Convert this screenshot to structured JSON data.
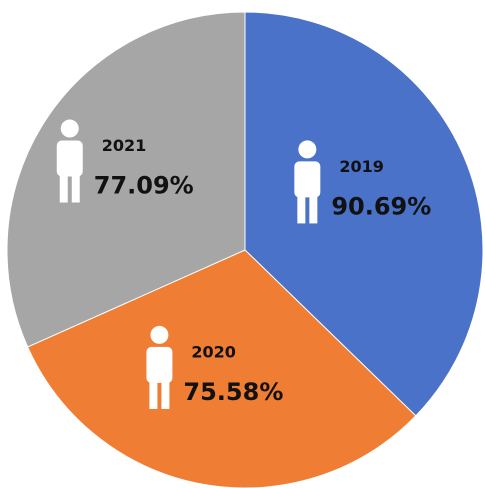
{
  "chart_data": {
    "type": "pie",
    "categories": [
      "2019",
      "2020",
      "2021"
    ],
    "values": [
      90.69,
      75.58,
      77.09
    ],
    "value_labels": [
      "90.69%",
      "75.58%",
      "77.09%"
    ],
    "colors": [
      "#4a72c8",
      "#ef7d33",
      "#a6a6a6"
    ]
  }
}
